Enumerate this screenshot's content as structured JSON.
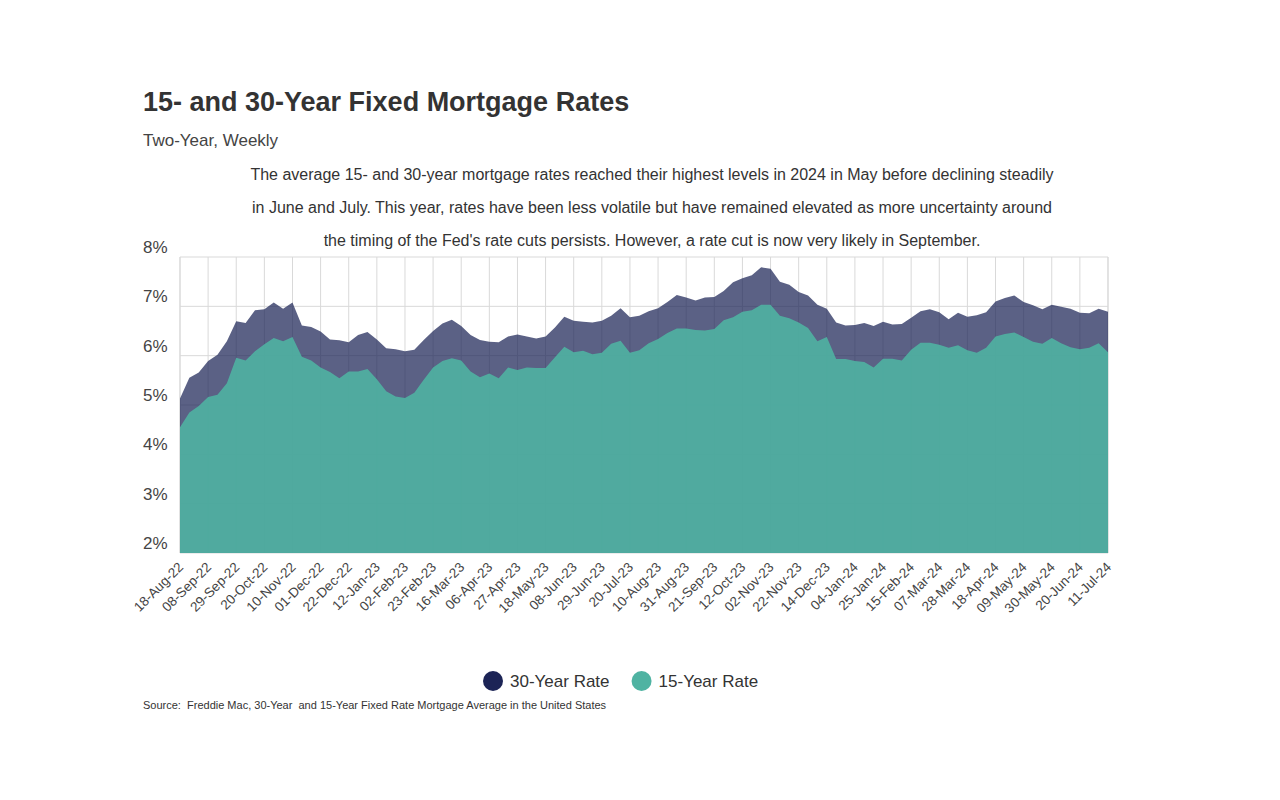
{
  "chart_data": {
    "type": "area",
    "title": "15- and 30-Year Fixed Mortgage Rates",
    "subtitle": "Two-Year, Weekly",
    "annotation": [
      "The average 15- and 30-year mortgage rates reached their highest levels in 2024 in May before declining steadily",
      "in June and July. This year, rates have been less volatile but have remained elevated as more uncertainty around",
      "the timing of the Fed's rate cuts persists. However, a rate cut is now very likely in September."
    ],
    "source": "Source:  Freddie Mac, 30-Year  and 15-Year Fixed Rate Mortgage Average in the United States",
    "categories": [
      "18-Aug-22",
      null,
      null,
      "08-Sep-22",
      null,
      null,
      "29-Sep-22",
      null,
      null,
      "20-Oct-22",
      null,
      null,
      "10-Nov-22",
      null,
      null,
      "01-Dec-22",
      null,
      null,
      "22-Dec-22",
      null,
      null,
      "12-Jan-23",
      null,
      null,
      "02-Feb-23",
      null,
      null,
      "23-Feb-23",
      null,
      null,
      "16-Mar-23",
      null,
      null,
      "06-Apr-23",
      null,
      null,
      "27-Apr-23",
      null,
      null,
      "18-May-23",
      null,
      null,
      "08-Jun-23",
      null,
      null,
      "29-Jun-23",
      null,
      null,
      "20-Jul-23",
      null,
      null,
      "10-Aug-23",
      null,
      null,
      "31-Aug-23",
      null,
      null,
      "21-Sep-23",
      null,
      null,
      "12-Oct-23",
      null,
      null,
      "02-Nov-23",
      null,
      null,
      "22-Nov-23",
      null,
      null,
      "14-Dec-23",
      null,
      null,
      "04-Jan-24",
      null,
      null,
      "25-Jan-24",
      null,
      null,
      "15-Feb-24",
      null,
      null,
      "07-Mar-24",
      null,
      null,
      "28-Mar-24",
      null,
      null,
      "18-Apr-24",
      null,
      null,
      "09-May-24",
      null,
      null,
      "30-May-24",
      null,
      null,
      "20-Jun-24",
      null,
      null,
      "11-Jul-24"
    ],
    "series": [
      {
        "name": "30-Year Rate",
        "color": "#1c2456",
        "values": [
          5.13,
          5.55,
          5.66,
          5.89,
          6.02,
          6.29,
          6.7,
          6.66,
          6.92,
          6.94,
          7.08,
          6.95,
          7.08,
          6.61,
          6.58,
          6.49,
          6.33,
          6.31,
          6.27,
          6.42,
          6.48,
          6.33,
          6.15,
          6.13,
          6.09,
          6.12,
          6.32,
          6.5,
          6.65,
          6.73,
          6.6,
          6.42,
          6.32,
          6.28,
          6.27,
          6.39,
          6.43,
          6.39,
          6.35,
          6.39,
          6.57,
          6.79,
          6.71,
          6.69,
          6.67,
          6.71,
          6.81,
          6.96,
          6.78,
          6.81,
          6.9,
          6.96,
          7.09,
          7.23,
          7.18,
          7.12,
          7.18,
          7.19,
          7.31,
          7.49,
          7.57,
          7.63,
          7.79,
          7.76,
          7.5,
          7.44,
          7.29,
          7.22,
          7.03,
          6.95,
          6.67,
          6.61,
          6.62,
          6.66,
          6.6,
          6.69,
          6.63,
          6.64,
          6.77,
          6.9,
          6.94,
          6.88,
          6.74,
          6.87,
          6.79,
          6.82,
          6.88,
          7.1,
          7.17,
          7.22,
          7.09,
          7.02,
          6.94,
          7.03,
          6.99,
          6.95,
          6.87,
          6.86,
          6.95,
          6.89
        ]
      },
      {
        "name": "15-Year Rate",
        "color": "#4fb3a2",
        "values": [
          4.55,
          4.85,
          4.98,
          5.16,
          5.21,
          5.44,
          5.96,
          5.9,
          6.09,
          6.23,
          6.36,
          6.29,
          6.38,
          5.98,
          5.9,
          5.76,
          5.67,
          5.54,
          5.68,
          5.68,
          5.73,
          5.52,
          5.28,
          5.17,
          5.14,
          5.25,
          5.51,
          5.76,
          5.89,
          5.95,
          5.9,
          5.68,
          5.56,
          5.64,
          5.54,
          5.76,
          5.71,
          5.76,
          5.75,
          5.75,
          5.97,
          6.18,
          6.07,
          6.1,
          6.03,
          6.06,
          6.24,
          6.3,
          6.06,
          6.11,
          6.25,
          6.34,
          6.46,
          6.55,
          6.55,
          6.52,
          6.51,
          6.54,
          6.72,
          6.78,
          6.89,
          6.92,
          7.03,
          7.03,
          6.81,
          6.76,
          6.67,
          6.56,
          6.29,
          6.38,
          5.93,
          5.93,
          5.89,
          5.87,
          5.76,
          5.94,
          5.94,
          5.9,
          6.12,
          6.26,
          6.26,
          6.22,
          6.16,
          6.21,
          6.11,
          6.06,
          6.16,
          6.39,
          6.44,
          6.47,
          6.38,
          6.28,
          6.24,
          6.36,
          6.25,
          6.17,
          6.13,
          6.16,
          6.25,
          6.07
        ]
      }
    ],
    "ylim": [
      2,
      8
    ],
    "yticks": [
      {
        "value": 2,
        "label": "2%"
      },
      {
        "value": 3,
        "label": "3%"
      },
      {
        "value": 4,
        "label": "4%"
      },
      {
        "value": 5,
        "label": "5%"
      },
      {
        "value": 6,
        "label": "6%"
      },
      {
        "value": 7,
        "label": "7%"
      },
      {
        "value": 8,
        "label": "8%"
      }
    ],
    "grid": true,
    "legend": "bottom"
  }
}
